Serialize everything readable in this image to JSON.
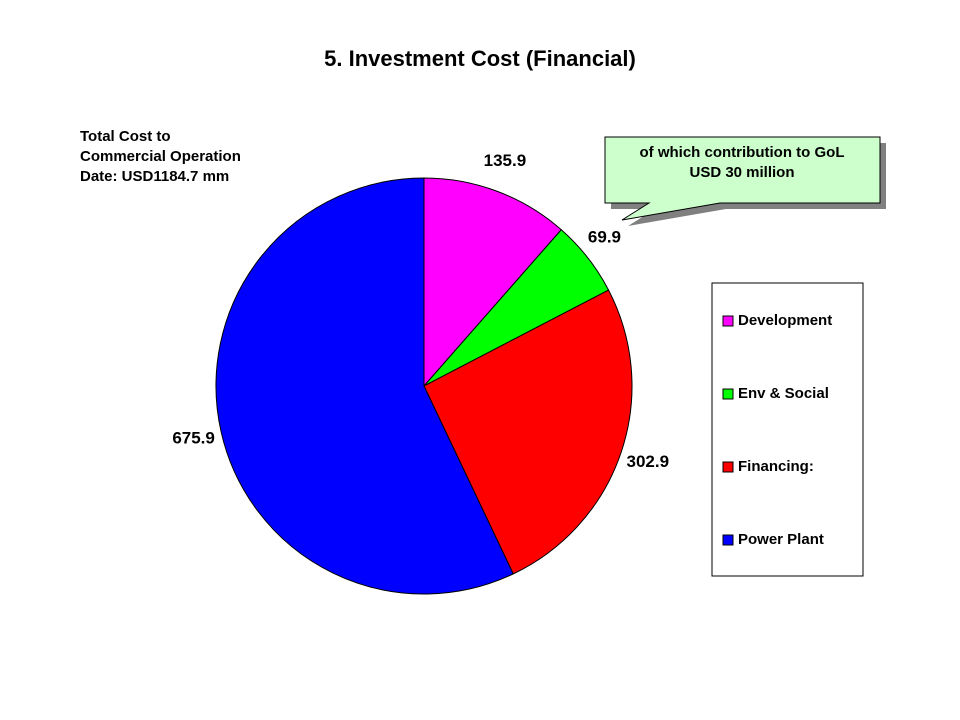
{
  "chart_data": {
    "type": "pie",
    "title": "5.  Investment Cost (Financial)",
    "categories": [
      "Development",
      "Env & Social",
      "Financing:",
      "Power Plant"
    ],
    "values": [
      135.9,
      69.9,
      302.9,
      675.9
    ],
    "colors": [
      "#ff00ff",
      "#00ff00",
      "#ff0000",
      "#0000ff"
    ],
    "note": [
      "Total Cost to",
      "Commercial Operation",
      "Date: USD1184.7 mm"
    ],
    "callout": [
      "of which contribution to GoL",
      "USD 30 million"
    ],
    "legend": "right"
  }
}
